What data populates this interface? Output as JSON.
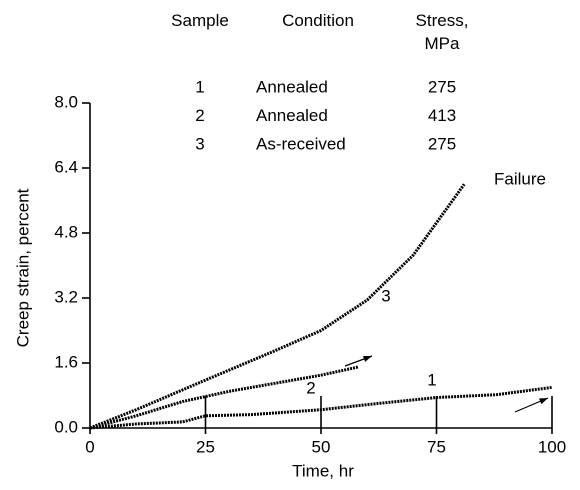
{
  "chart_data": {
    "type": "line",
    "xlabel": "Time, hr",
    "ylabel": "Creep strain, percent",
    "xlim": [
      0,
      100
    ],
    "xticks": [
      0,
      25,
      50,
      75,
      100
    ],
    "ylim": [
      0,
      8
    ],
    "yticks": [
      {
        "value": 0,
        "label": "0.0"
      },
      1.6,
      3.2,
      4.8,
      6.4,
      {
        "value": 8,
        "label": "8.0"
      }
    ],
    "legend_table": {
      "headers": [
        "Sample",
        "Condition",
        "Stress,\nMPa"
      ],
      "rows": [
        [
          "1",
          "Annealed",
          "275"
        ],
        [
          "2",
          "Annealed",
          "413"
        ],
        [
          "3",
          "As-received",
          "275"
        ]
      ]
    },
    "annotations": [
      "Failure"
    ],
    "series": [
      {
        "name": "1",
        "color": "#000000",
        "x": [
          0,
          10,
          20,
          25,
          35,
          50,
          62,
          75,
          88,
          100
        ],
        "values": [
          0,
          0.1,
          0.15,
          0.3,
          0.33,
          0.45,
          0.6,
          0.75,
          0.82,
          1.0
        ]
      },
      {
        "name": "2",
        "color": "#000000",
        "x": [
          0,
          10,
          20,
          30,
          40,
          50,
          58
        ],
        "values": [
          0,
          0.3,
          0.65,
          0.9,
          1.1,
          1.3,
          1.5
        ]
      },
      {
        "name": "3",
        "color": "#000000",
        "x": [
          0,
          10,
          25,
          40,
          50,
          60,
          70,
          81
        ],
        "values": [
          0,
          0.45,
          1.18,
          1.9,
          2.4,
          3.15,
          4.26,
          6.0
        ]
      }
    ]
  }
}
